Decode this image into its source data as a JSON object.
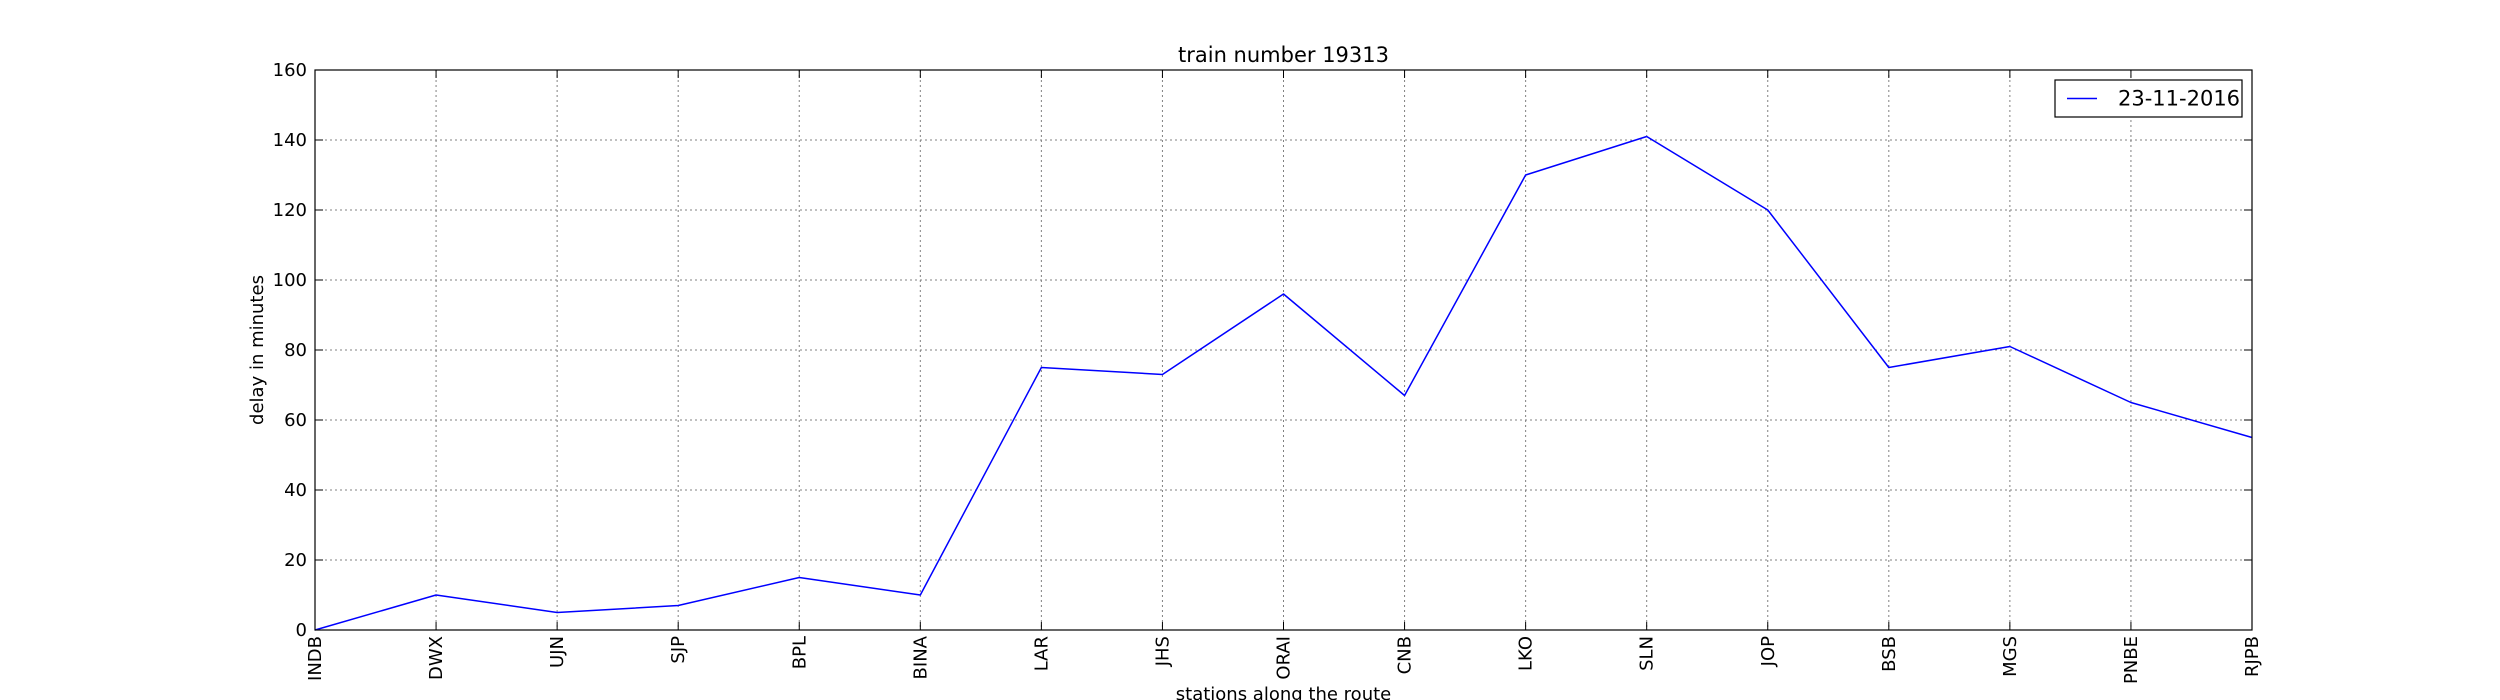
{
  "chart_data": {
    "type": "line",
    "title": "train number 19313",
    "xlabel": "stations along the route",
    "ylabel": "delay in minutes",
    "categories": [
      "INDB",
      "DWX",
      "UJN",
      "SJP",
      "BPL",
      "BINA",
      "LAR",
      "JHS",
      "ORAI",
      "CNB",
      "LKO",
      "SLN",
      "JOP",
      "BSB",
      "MGS",
      "PNBE",
      "RJPB"
    ],
    "series": [
      {
        "name": "23-11-2016",
        "values": [
          0,
          10,
          5,
          7,
          15,
          10,
          75,
          73,
          96,
          67,
          130,
          141,
          120,
          75,
          81,
          65,
          55
        ]
      }
    ],
    "ylim": [
      0,
      160
    ],
    "yticks": [
      0,
      20,
      40,
      60,
      80,
      100,
      120,
      140,
      160
    ],
    "grid": true,
    "legend_position": "top-right",
    "colors": {
      "series": "#0000ff",
      "grid": "#808080",
      "axes": "#000000"
    }
  }
}
